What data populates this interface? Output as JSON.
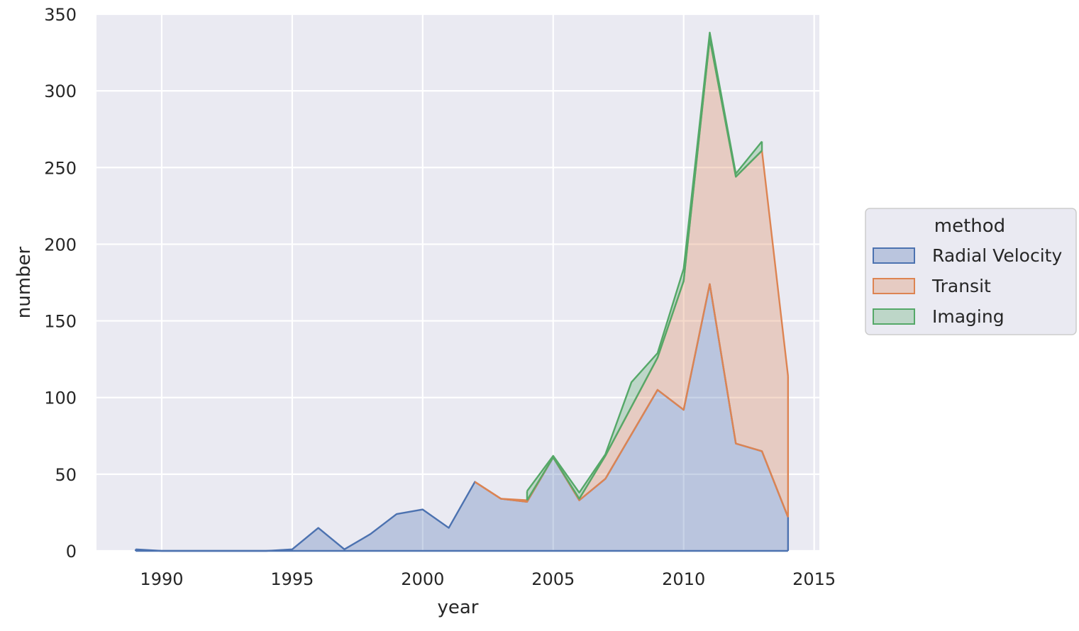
{
  "chart_data": {
    "type": "area",
    "stacked": true,
    "xlabel": "year",
    "ylabel": "number",
    "xlim": [
      1987.5,
      2015.2
    ],
    "ylim": [
      0,
      350
    ],
    "xticks": [
      1990,
      1995,
      2000,
      2005,
      2010,
      2015
    ],
    "yticks": [
      0,
      50,
      100,
      150,
      200,
      250,
      300,
      350
    ],
    "grid": true,
    "legend": {
      "title": "method",
      "placement": "right"
    },
    "colors": {
      "background": "#eaeaf2",
      "grid": "#ffffff",
      "Radial Velocity": "#4c72b0",
      "Transit": "#dd8452",
      "Imaging": "#55a868"
    },
    "series": [
      {
        "name": "Radial Velocity",
        "x": [
          1989,
          1990,
          1991,
          1992,
          1993,
          1994,
          1995,
          1996,
          1997,
          1998,
          1999,
          2000,
          2001,
          2002,
          2003,
          2004,
          2005,
          2006,
          2007,
          2008,
          2009,
          2010,
          2011,
          2012,
          2013,
          2014
        ],
        "values": [
          1,
          0,
          0,
          0,
          0,
          0,
          1,
          15,
          1,
          11,
          24,
          27,
          15,
          45,
          34,
          32,
          61,
          33,
          47,
          76,
          105,
          92,
          174,
          70,
          65,
          22
        ]
      },
      {
        "name": "Transit",
        "x": [
          2002,
          2003,
          2004,
          2005,
          2006,
          2007,
          2008,
          2009,
          2010,
          2011,
          2012,
          2013,
          2014
        ],
        "values": [
          0,
          0,
          1,
          0,
          1,
          15,
          18,
          21,
          84,
          160,
          174,
          196,
          92
        ]
      },
      {
        "name": "Imaging",
        "x": [
          2004,
          2005,
          2006,
          2007,
          2008,
          2009,
          2010,
          2011,
          2012,
          2013
        ],
        "values": [
          6,
          1,
          4,
          1,
          16,
          3,
          8,
          4,
          2,
          6
        ]
      }
    ]
  }
}
